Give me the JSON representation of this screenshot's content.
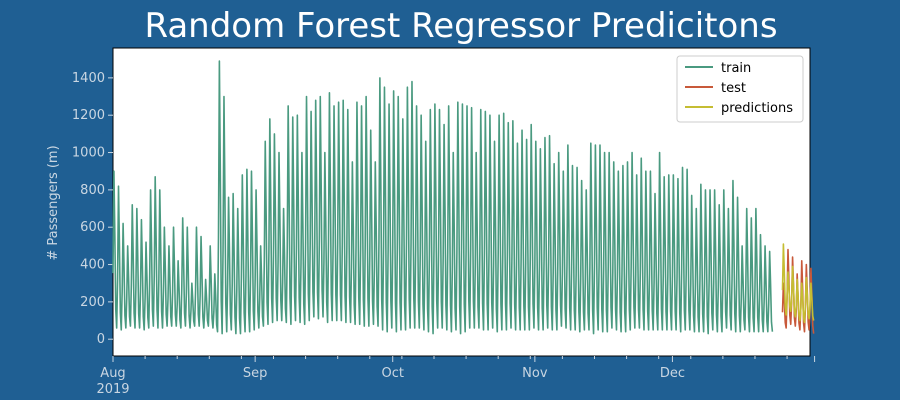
{
  "chart_data": {
    "type": "line",
    "title": "Random Forest Regressor Predicitons",
    "xlabel": "",
    "ylabel": "# Passengers (m)",
    "x_range": [
      "2019-08-01",
      "2019-12-31"
    ],
    "ylim": [
      -90,
      1560
    ],
    "y_ticks": [
      0,
      200,
      400,
      600,
      800,
      1000,
      1200,
      1400
    ],
    "x_ticks": [
      {
        "date": "2019-08-01",
        "label": "Aug",
        "sublabel": "2019"
      },
      {
        "date": "2019-09-01",
        "label": "Sep",
        "sublabel": ""
      },
      {
        "date": "2019-10-01",
        "label": "Oct",
        "sublabel": ""
      },
      {
        "date": "2019-11-01",
        "label": "Nov",
        "sublabel": ""
      },
      {
        "date": "2019-12-01",
        "label": "Dec",
        "sublabel": ""
      },
      {
        "date": "2020-01-01",
        "label": "",
        "sublabel": ""
      }
    ],
    "legend_position": "top-right",
    "grid": false,
    "series": [
      {
        "name": "train",
        "color": "#4a9a80",
        "x_start": "2019-08-01",
        "x_end": "2019-12-24",
        "points_per_day": 5,
        "daily_low": [
          60,
          50,
          60,
          70,
          60,
          60,
          50,
          60,
          70,
          60,
          60,
          70,
          70,
          70,
          60,
          70,
          60,
          70,
          70,
          60,
          70,
          60,
          40,
          30,
          40,
          50,
          30,
          30,
          40,
          40,
          50,
          60,
          70,
          80,
          90,
          100,
          100,
          90,
          80,
          100,
          90,
          80,
          100,
          120,
          110,
          120,
          90,
          100,
          100,
          100,
          90,
          90,
          80,
          80,
          70,
          70,
          80,
          70,
          50,
          40,
          60,
          40,
          50,
          50,
          60,
          60,
          60,
          50,
          40,
          30,
          60,
          60,
          50,
          40,
          50,
          30,
          40,
          60,
          60,
          60,
          50,
          50,
          60,
          40,
          50,
          50,
          60,
          50,
          50,
          50,
          50,
          60,
          50,
          50,
          60,
          50,
          50,
          70,
          60,
          50,
          50,
          40,
          50,
          50,
          30,
          50,
          40,
          40,
          60,
          50,
          40,
          40,
          50,
          60,
          60,
          50,
          50,
          50,
          50,
          50,
          50,
          50,
          50,
          40,
          50,
          50,
          40,
          40,
          40,
          30,
          50,
          40,
          40,
          60,
          50,
          40,
          40,
          50,
          40,
          40,
          40,
          40,
          40,
          40,
          40,
          50
        ],
        "daily_high": [
          900,
          820,
          620,
          500,
          720,
          700,
          640,
          520,
          800,
          870,
          800,
          600,
          500,
          600,
          420,
          650,
          600,
          300,
          600,
          550,
          320,
          500,
          350,
          1490,
          1300,
          760,
          780,
          700,
          880,
          910,
          900,
          800,
          500,
          1060,
          1180,
          1100,
          1000,
          700,
          1250,
          1190,
          1200,
          1000,
          1300,
          1220,
          1280,
          1300,
          1000,
          1320,
          1250,
          1270,
          1280,
          1230,
          950,
          1270,
          1250,
          1300,
          1120,
          950,
          1400,
          1350,
          1260,
          1330,
          1300,
          1180,
          1350,
          1380,
          1250,
          1200,
          1060,
          1230,
          1260,
          1230,
          1150,
          1250,
          1000,
          1270,
          1260,
          1250,
          1240,
          1000,
          1230,
          1220,
          1200,
          1060,
          1200,
          1210,
          1160,
          1170,
          1050,
          1120,
          1070,
          1150,
          1060,
          1020,
          1080,
          1090,
          940,
          1000,
          900,
          1040,
          930,
          920,
          850,
          800,
          1050,
          1040,
          1040,
          1000,
          1000,
          950,
          900,
          930,
          950,
          1000,
          880,
          970,
          900,
          900,
          780,
          1000,
          870,
          880,
          880,
          860,
          920,
          910,
          770,
          700,
          830,
          800,
          800,
          800,
          720,
          800,
          700,
          850,
          760,
          500,
          700,
          650,
          700,
          560,
          500,
          470
        ]
      },
      {
        "name": "test",
        "color": "#c8593a",
        "x_start": "2019-12-25",
        "x_end": "2019-12-31",
        "points_per_day": 5,
        "daily_low": [
          60,
          80,
          70,
          50,
          40,
          50,
          30
        ],
        "daily_high": [
          300,
          480,
          440,
          350,
          420,
          400,
          380
        ]
      },
      {
        "name": "predictions",
        "color": "#c5bd32",
        "x_start": "2019-12-25",
        "x_end": "2019-12-31",
        "points_per_day": 5,
        "daily_low": [
          130,
          150,
          120,
          100,
          90,
          110,
          100
        ],
        "daily_high": [
          510,
          360,
          390,
          320,
          300,
          330,
          300
        ]
      }
    ]
  }
}
